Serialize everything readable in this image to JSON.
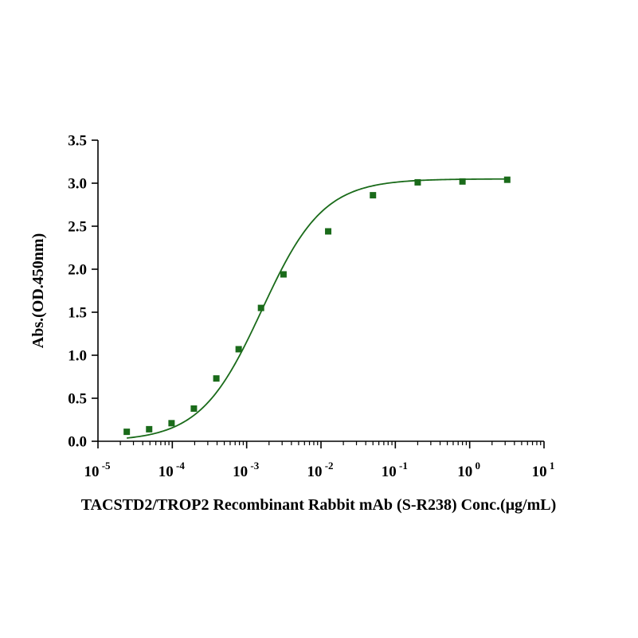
{
  "chart_data": {
    "type": "scatter",
    "title": "",
    "xlabel": "TACSTD2/TROP2 Recombinant Rabbit mAb (S-R238) Conc.(μg/mL)",
    "ylabel": "Abs.(OD.450nm)",
    "x_scale": "log",
    "xlim": [
      1e-05,
      10
    ],
    "ylim": [
      0,
      3.5
    ],
    "x_ticks": [
      {
        "base": "10",
        "exp": "-5"
      },
      {
        "base": "10",
        "exp": "-4"
      },
      {
        "base": "10",
        "exp": "-3"
      },
      {
        "base": "10",
        "exp": "-2"
      },
      {
        "base": "10",
        "exp": "-1"
      },
      {
        "base": "10",
        "exp": "0"
      },
      {
        "base": "10",
        "exp": "1"
      }
    ],
    "y_ticks": [
      "0.0",
      "0.5",
      "1.0",
      "1.5",
      "2.0",
      "2.5",
      "3.0",
      "3.5"
    ],
    "series_color": "#1a6b1a",
    "marker": "square",
    "fit_curve": true,
    "x": [
      2.44e-05,
      4.88e-05,
      9.77e-05,
      0.000195,
      0.000391,
      0.000781,
      0.00156,
      0.00313,
      0.0125,
      0.05,
      0.2,
      0.8,
      3.2
    ],
    "y": [
      0.11,
      0.14,
      0.21,
      0.38,
      0.73,
      1.07,
      1.55,
      1.94,
      2.44,
      2.86,
      3.01,
      3.02,
      3.04
    ]
  }
}
